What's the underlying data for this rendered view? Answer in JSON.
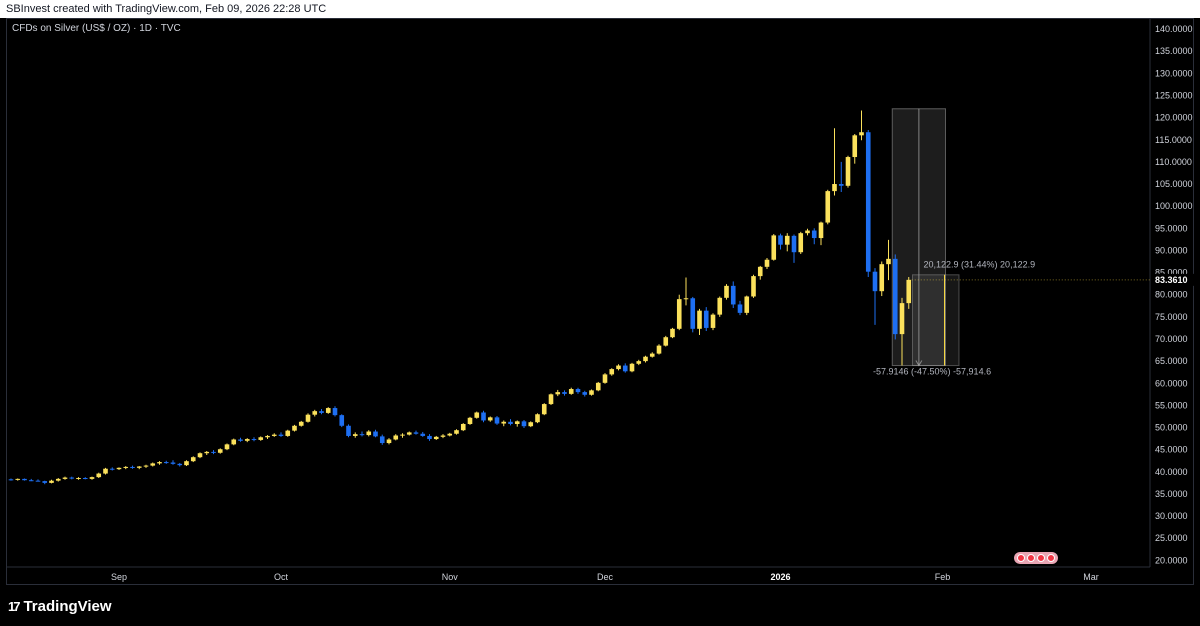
{
  "header": {
    "credit": "SBInvest created with TradingView.com, Feb 09, 2026 22:28 UTC"
  },
  "legend": {
    "symbol": "CFDs on Silver (US$ / OZ) · 1D · TVC"
  },
  "footer": {
    "brand": "TradingView",
    "brand_mark": "17"
  },
  "colors": {
    "up": "#fbe15c",
    "down": "#1e6ff2",
    "background": "#000000",
    "last_price_bg": "#000000"
  },
  "chart_data": {
    "type": "candlestick",
    "title": "CFDs on Silver (US$ / OZ) · 1D · TVC",
    "y_ticks": [
      "140.0000",
      "135.0000",
      "130.0000",
      "125.0000",
      "120.0000",
      "115.0000",
      "110.0000",
      "105.0000",
      "100.0000",
      "95.0000",
      "90.0000",
      "85.0000",
      "80.0000",
      "75.0000",
      "70.0000",
      "65.0000",
      "60.0000",
      "55.0000",
      "50.0000",
      "45.0000",
      "40.0000",
      "35.0000",
      "30.0000",
      "25.0000",
      "20.0000"
    ],
    "ylim": [
      18.5,
      142.5
    ],
    "last_price": "83.3610",
    "x_labels": [
      {
        "label": "Sep",
        "index": 16
      },
      {
        "label": "Oct",
        "index": 40
      },
      {
        "label": "Nov",
        "index": 65
      },
      {
        "label": "Dec",
        "index": 88
      },
      {
        "label": "2026",
        "index": 114,
        "bold": true
      },
      {
        "label": "Feb",
        "index": 138
      },
      {
        "label": "Mar",
        "index": 160
      }
    ],
    "candles": [
      [
        38.3,
        38.5,
        38.0,
        38.2
      ],
      [
        38.2,
        38.5,
        38.0,
        38.4
      ],
      [
        38.4,
        38.5,
        38.0,
        38.1
      ],
      [
        38.1,
        38.4,
        37.9,
        38.0
      ],
      [
        38.0,
        38.3,
        37.8,
        37.9
      ],
      [
        37.9,
        38.0,
        37.2,
        37.5
      ],
      [
        37.5,
        38.2,
        37.4,
        38.0
      ],
      [
        38.0,
        38.6,
        37.8,
        38.4
      ],
      [
        38.4,
        38.9,
        38.2,
        38.7
      ],
      [
        38.7,
        38.9,
        38.3,
        38.5
      ],
      [
        38.5,
        38.8,
        38.2,
        38.6
      ],
      [
        38.6,
        38.8,
        38.3,
        38.4
      ],
      [
        38.4,
        38.9,
        38.2,
        38.8
      ],
      [
        38.8,
        39.8,
        38.6,
        39.6
      ],
      [
        39.6,
        40.9,
        39.4,
        40.7
      ],
      [
        40.7,
        41.0,
        40.3,
        40.6
      ],
      [
        40.6,
        41.0,
        40.4,
        40.9
      ],
      [
        40.9,
        41.3,
        40.6,
        41.1
      ],
      [
        41.1,
        41.4,
        40.7,
        40.9
      ],
      [
        40.9,
        41.3,
        40.6,
        41.2
      ],
      [
        41.2,
        41.6,
        40.9,
        41.4
      ],
      [
        41.4,
        42.1,
        41.2,
        41.9
      ],
      [
        41.9,
        42.4,
        41.6,
        42.2
      ],
      [
        42.2,
        42.5,
        41.8,
        42.1
      ],
      [
        42.1,
        42.6,
        41.6,
        41.8
      ],
      [
        41.8,
        42.0,
        41.2,
        41.5
      ],
      [
        41.5,
        42.6,
        41.3,
        42.4
      ],
      [
        42.4,
        43.5,
        42.2,
        43.3
      ],
      [
        43.3,
        44.4,
        43.1,
        44.2
      ],
      [
        44.2,
        44.7,
        43.8,
        44.5
      ],
      [
        44.5,
        44.9,
        44.0,
        44.3
      ],
      [
        44.3,
        45.3,
        44.1,
        45.1
      ],
      [
        45.1,
        46.4,
        44.9,
        46.2
      ],
      [
        46.2,
        47.5,
        46.0,
        47.3
      ],
      [
        47.3,
        47.7,
        46.8,
        47.0
      ],
      [
        47.0,
        47.6,
        46.7,
        47.4
      ],
      [
        47.4,
        47.8,
        46.9,
        47.2
      ],
      [
        47.2,
        48.0,
        47.0,
        47.8
      ],
      [
        47.8,
        48.3,
        47.4,
        48.1
      ],
      [
        48.1,
        48.7,
        47.9,
        48.4
      ],
      [
        48.4,
        48.9,
        47.9,
        48.1
      ],
      [
        48.1,
        49.5,
        47.9,
        49.3
      ],
      [
        49.3,
        50.6,
        49.1,
        50.4
      ],
      [
        50.4,
        51.5,
        50.2,
        51.3
      ],
      [
        51.3,
        53.2,
        51.1,
        52.9
      ],
      [
        52.9,
        54.0,
        52.5,
        53.7
      ],
      [
        53.7,
        54.2,
        53.0,
        53.3
      ],
      [
        53.3,
        54.6,
        53.1,
        54.4
      ],
      [
        54.4,
        54.8,
        52.5,
        52.8
      ],
      [
        52.8,
        53.0,
        50.1,
        50.4
      ],
      [
        50.4,
        50.7,
        47.8,
        48.1
      ],
      [
        48.1,
        48.9,
        47.7,
        48.5
      ],
      [
        48.5,
        49.1,
        48.0,
        48.3
      ],
      [
        48.3,
        49.4,
        48.0,
        49.1
      ],
      [
        49.1,
        49.5,
        47.8,
        48.0
      ],
      [
        48.0,
        48.4,
        46.1,
        46.5
      ],
      [
        46.5,
        47.6,
        46.2,
        47.3
      ],
      [
        47.3,
        48.5,
        47.1,
        48.2
      ],
      [
        48.2,
        48.7,
        47.7,
        48.4
      ],
      [
        48.4,
        49.1,
        48.2,
        48.9
      ],
      [
        48.9,
        49.3,
        48.4,
        48.6
      ],
      [
        48.6,
        49.0,
        47.9,
        48.1
      ],
      [
        48.1,
        48.5,
        47.0,
        47.4
      ],
      [
        47.4,
        48.1,
        47.2,
        47.9
      ],
      [
        47.9,
        48.5,
        47.6,
        48.2
      ],
      [
        48.2,
        48.8,
        48.0,
        48.6
      ],
      [
        48.6,
        49.6,
        48.4,
        49.4
      ],
      [
        49.4,
        51.0,
        49.2,
        50.8
      ],
      [
        50.8,
        52.4,
        50.6,
        52.2
      ],
      [
        52.2,
        53.6,
        52.0,
        53.4
      ],
      [
        53.4,
        53.8,
        51.2,
        51.6
      ],
      [
        51.6,
        52.5,
        51.3,
        52.3
      ],
      [
        52.3,
        52.6,
        50.6,
        50.9
      ],
      [
        50.9,
        51.6,
        50.3,
        51.3
      ],
      [
        51.3,
        51.9,
        50.5,
        50.8
      ],
      [
        50.8,
        51.6,
        50.2,
        51.4
      ],
      [
        51.4,
        51.7,
        49.9,
        50.3
      ],
      [
        50.3,
        51.4,
        50.1,
        51.2
      ],
      [
        51.2,
        53.2,
        51.0,
        53.0
      ],
      [
        53.0,
        55.5,
        52.8,
        55.3
      ],
      [
        55.3,
        57.7,
        55.1,
        57.5
      ],
      [
        57.5,
        58.5,
        57.1,
        58.0
      ],
      [
        58.0,
        58.4,
        57.2,
        57.6
      ],
      [
        57.6,
        59.0,
        57.4,
        58.7
      ],
      [
        58.7,
        59.0,
        57.6,
        58.0
      ],
      [
        58.0,
        58.3,
        57.0,
        57.4
      ],
      [
        57.4,
        58.6,
        57.2,
        58.4
      ],
      [
        58.4,
        60.3,
        58.2,
        60.1
      ],
      [
        60.1,
        62.3,
        59.9,
        62.0
      ],
      [
        62.0,
        63.4,
        61.7,
        63.2
      ],
      [
        63.2,
        64.3,
        62.9,
        64.0
      ],
      [
        64.0,
        64.5,
        62.4,
        62.7
      ],
      [
        62.7,
        64.6,
        62.5,
        64.4
      ],
      [
        64.4,
        65.3,
        64.1,
        65.0
      ],
      [
        65.0,
        66.2,
        64.7,
        66.0
      ],
      [
        66.0,
        67.0,
        65.8,
        66.7
      ],
      [
        66.7,
        68.8,
        66.5,
        68.5
      ],
      [
        68.5,
        70.7,
        68.3,
        70.4
      ],
      [
        70.4,
        72.5,
        70.2,
        72.3
      ],
      [
        72.3,
        80.0,
        72.0,
        79.0
      ],
      [
        79.0,
        83.9,
        77.6,
        79.2
      ],
      [
        79.2,
        79.5,
        71.5,
        72.3
      ],
      [
        72.3,
        76.8,
        70.9,
        76.4
      ],
      [
        76.4,
        77.2,
        71.8,
        72.5
      ],
      [
        72.5,
        75.8,
        72.0,
        75.5
      ],
      [
        75.5,
        79.6,
        75.0,
        79.3
      ],
      [
        79.3,
        82.4,
        78.9,
        82.0
      ],
      [
        82.0,
        83.0,
        77.0,
        77.8
      ],
      [
        77.8,
        78.6,
        75.4,
        75.9
      ],
      [
        75.9,
        79.8,
        75.4,
        79.6
      ],
      [
        79.6,
        84.5,
        79.3,
        84.2
      ],
      [
        84.2,
        86.5,
        83.4,
        86.3
      ],
      [
        86.3,
        88.3,
        85.8,
        87.9
      ],
      [
        87.9,
        93.7,
        87.7,
        93.4
      ],
      [
        93.4,
        93.8,
        90.2,
        91.3
      ],
      [
        91.3,
        93.9,
        89.8,
        93.3
      ],
      [
        93.3,
        93.6,
        87.2,
        89.6
      ],
      [
        89.6,
        94.2,
        89.2,
        93.9
      ],
      [
        93.9,
        94.9,
        93.4,
        94.5
      ],
      [
        94.5,
        95.0,
        91.4,
        92.8
      ],
      [
        92.8,
        96.5,
        91.2,
        96.3
      ],
      [
        96.3,
        103.7,
        95.9,
        103.4
      ],
      [
        103.4,
        117.6,
        102.4,
        105.0
      ],
      [
        105.0,
        110.0,
        103.2,
        104.6
      ],
      [
        104.6,
        111.4,
        104.2,
        111.1
      ],
      [
        111.1,
        116.3,
        109.6,
        116.0
      ],
      [
        116.0,
        121.6,
        114.9,
        116.7
      ],
      [
        116.7,
        117.2,
        84.0,
        85.2
      ],
      [
        85.2,
        86.0,
        73.2,
        80.8
      ],
      [
        80.8,
        87.5,
        79.7,
        86.9
      ],
      [
        86.9,
        92.4,
        83.3,
        88.1
      ],
      [
        88.1,
        89.1,
        69.9,
        71.1
      ],
      [
        71.1,
        79.3,
        64.0,
        78.1
      ],
      [
        78.1,
        84.0,
        76.8,
        83.361
      ]
    ],
    "measure": {
      "upper_label": "20,122.9 (31.44%) 20,122.9",
      "lower_label": "-57.9146 (-47.50%) -57,914.6",
      "box_high": 122.0,
      "box_low": 64.0,
      "start_index": 131,
      "end_index": 138
    }
  }
}
